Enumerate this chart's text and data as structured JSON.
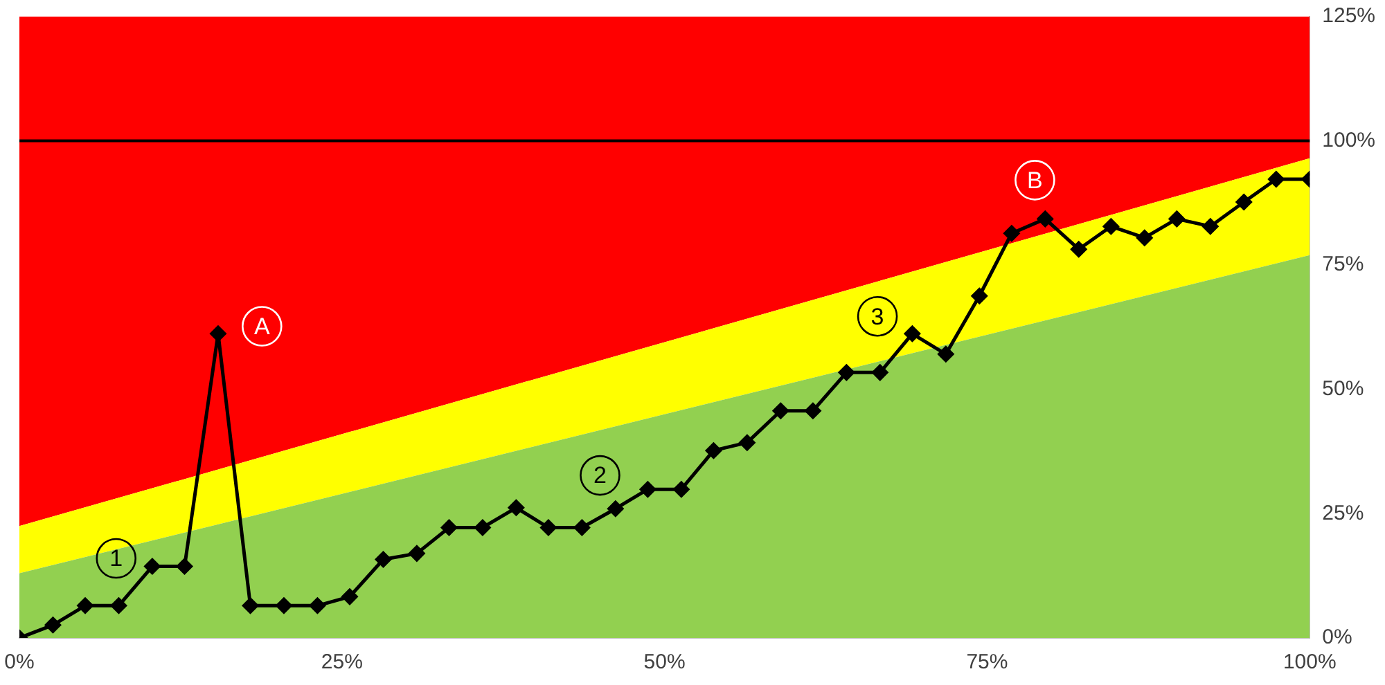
{
  "chart_data": {
    "type": "line",
    "stacked": true,
    "line_style": "solid",
    "grid": false,
    "legend": false,
    "xlim": [
      0,
      100
    ],
    "xticks": [
      {
        "value": 0,
        "label": "0%"
      },
      {
        "value": 25,
        "label": "25%"
      },
      {
        "value": 50,
        "label": "50%"
      },
      {
        "value": 75,
        "label": "75%"
      },
      {
        "value": 100,
        "label": "100%"
      }
    ],
    "ylim": [
      0,
      125
    ],
    "yticks": [
      {
        "value": 0,
        "label": "0%"
      },
      {
        "value": 25,
        "label": "25%"
      },
      {
        "value": 50,
        "label": "50%"
      },
      {
        "value": 75,
        "label": "75%"
      },
      {
        "value": 100,
        "label": "100%"
      },
      {
        "value": 125,
        "label": "125%"
      }
    ],
    "series": [
      {
        "type": "area",
        "color": "#92d050",
        "x": [
          0,
          100
        ],
        "values": [
          13,
          77
        ]
      },
      {
        "type": "area",
        "color": "#ffff00",
        "x": [
          0,
          100
        ],
        "values": [
          9.5,
          19.5
        ]
      },
      {
        "type": "area",
        "color": "#ff0000",
        "x": [
          0,
          100
        ],
        "values": [
          102.5,
          28.5
        ]
      },
      {
        "marker": "diamond",
        "color": "#000000",
        "x": [
          0,
          2.6,
          5.1,
          7.7,
          10.3,
          12.8,
          15.4,
          17.9,
          20.5,
          23.1,
          25.6,
          28.2,
          30.8,
          33.3,
          35.9,
          38.5,
          41,
          43.6,
          46.2,
          48.7,
          51.3,
          53.8,
          56.4,
          59,
          61.5,
          64.1,
          66.7,
          69.2,
          71.8,
          74.4,
          76.9,
          79.5,
          82.1,
          84.6,
          87.2,
          89.7,
          92.3,
          94.9,
          97.4,
          100
        ],
        "values": [
          0,
          2.6,
          6.5,
          6.5,
          14.4,
          14.4,
          61.2,
          6.5,
          6.5,
          6.5,
          8.3,
          15.8,
          17,
          22.2,
          22.2,
          26.2,
          22.2,
          22.2,
          26,
          29.9,
          29.9,
          37.7,
          39.3,
          45.7,
          45.7,
          53.4,
          53.4,
          61.2,
          57.1,
          68.8,
          81.4,
          84.3,
          78.2,
          82.8,
          80.5,
          84.3,
          82.8,
          87.7,
          92.3,
          92.3
        ]
      }
    ],
    "ref_lines": [
      {
        "axis": "y",
        "value": 100,
        "color": "#000000",
        "line_style": "solid"
      }
    ],
    "annotations": [
      {
        "text": "1",
        "x": 7.5,
        "y": 16
      },
      {
        "text": "A",
        "x": 18.8,
        "y": 62.7
      },
      {
        "text": "2",
        "x": 45,
        "y": 32.7
      },
      {
        "text": "3",
        "x": 66.5,
        "y": 64.7
      },
      {
        "text": "B",
        "x": 78.7,
        "y": 92.1
      }
    ]
  }
}
